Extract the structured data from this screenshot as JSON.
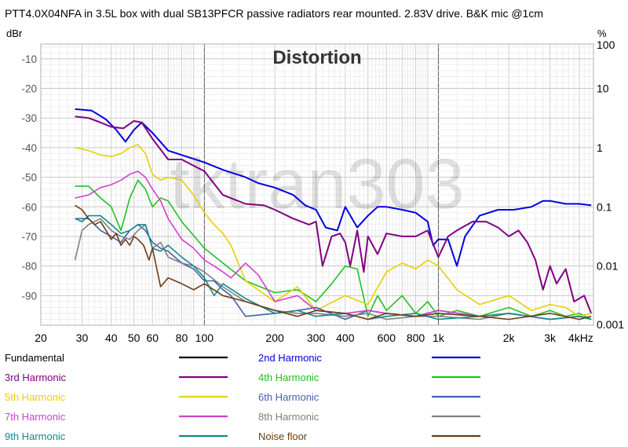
{
  "chart_data": {
    "type": "line",
    "title": "PTT4.0X04NFA in 3.5L box with dual SB13PFCR passive radiators rear mounted. 2.83V drive. B&K mic @1cm",
    "inner_title": "Distortion",
    "watermark": "tktran303",
    "x_scale": "log",
    "x_range": [
      20,
      4600
    ],
    "x_tick_values": [
      20,
      30,
      40,
      50,
      60,
      80,
      100,
      200,
      300,
      400,
      600,
      800,
      1000,
      2000,
      3000,
      4000
    ],
    "x_tick_labels": [
      "20",
      "30",
      "40",
      "50",
      "60",
      "80",
      "100",
      "200",
      "300",
      "400",
      "600",
      "800",
      "1k",
      "2k",
      "3k",
      "4kHz"
    ],
    "y_left_label": "dBr",
    "y_left_range": [
      -100,
      -5
    ],
    "y_left_ticks": [
      -10,
      -20,
      -30,
      -40,
      -50,
      -60,
      -70,
      -80,
      -90
    ],
    "y_left_tick_labels": [
      "-10",
      "-20",
      "-30",
      "-40",
      "-50",
      "-60",
      "-70",
      "-80",
      "-90"
    ],
    "y_right_label": "%",
    "y_right_ticks": [
      100,
      10,
      1,
      0.1,
      0.01,
      0.001
    ],
    "y_right_tick_labels": [
      "100",
      "10",
      "1",
      "0.1",
      "0.01",
      "0.001"
    ],
    "grid": true,
    "series": [
      {
        "name": "Fundamental",
        "color": "#000000",
        "x": [],
        "y": []
      },
      {
        "name": "2nd Harmonic",
        "color": "#0000e0",
        "x": [
          28,
          33,
          38,
          42,
          46,
          50,
          54,
          60,
          70,
          80,
          100,
          120,
          150,
          170,
          200,
          240,
          270,
          300,
          330,
          370,
          400,
          450,
          500,
          550,
          600,
          700,
          800,
          900,
          950,
          1000,
          1100,
          1200,
          1300,
          1500,
          1800,
          2100,
          2500,
          2800,
          3000,
          3500,
          4000,
          4500
        ],
        "y": [
          -27,
          -27.5,
          -30.5,
          -34,
          -38,
          -34,
          -31.5,
          -35,
          -41,
          -42.5,
          -45,
          -47.5,
          -50,
          -52,
          -53.5,
          -56,
          -59.5,
          -61,
          -67,
          -68,
          -60,
          -67,
          -63,
          -60,
          -60,
          -61,
          -62,
          -65,
          -73,
          -71,
          -71,
          -80,
          -70,
          -63,
          -61,
          -61,
          -60,
          -58,
          -58,
          -59,
          -59,
          -59.5
        ]
      },
      {
        "name": "3rd Harmonic",
        "color": "#800080",
        "x": [
          28,
          32,
          36,
          40,
          45,
          50,
          54,
          60,
          70,
          80,
          100,
          120,
          150,
          180,
          200,
          240,
          280,
          300,
          320,
          350,
          380,
          400,
          420,
          450,
          480,
          500,
          550,
          600,
          700,
          800,
          900,
          1000,
          1100,
          1200,
          1400,
          1600,
          1800,
          2000,
          2200,
          2400,
          2600,
          2800,
          3000,
          3200,
          3500,
          3800,
          4200,
          4500
        ],
        "y": [
          -29.5,
          -30,
          -31.5,
          -33,
          -33.5,
          -31,
          -31.5,
          -37,
          -44,
          -44,
          -48,
          -56,
          -59,
          -59.5,
          -61,
          -64,
          -66,
          -65,
          -80,
          -70,
          -69,
          -72,
          -80,
          -68,
          -82,
          -70,
          -76,
          -69,
          -70,
          -70,
          -68,
          -77,
          -70,
          -68,
          -65,
          -65,
          -67,
          -70,
          -68,
          -72,
          -78,
          -88,
          -80,
          -86,
          -81,
          -92,
          -90,
          -96
        ]
      },
      {
        "name": "4th Harmonic",
        "color": "#22c022",
        "x": [
          28,
          32,
          36,
          40,
          44,
          48,
          52,
          56,
          60,
          65,
          70,
          80,
          100,
          120,
          150,
          200,
          250,
          300,
          350,
          400,
          450,
          500,
          550,
          600,
          700,
          800,
          900,
          1000,
          1200,
          1500,
          2000,
          2500,
          3000,
          3500,
          4000,
          4500
        ],
        "y": [
          -53,
          -53,
          -57,
          -60,
          -68,
          -57,
          -51,
          -54,
          -60,
          -57,
          -58,
          -65,
          -74,
          -79,
          -85,
          -89,
          -88,
          -92,
          -86,
          -80,
          -81,
          -97,
          -90,
          -95,
          -90,
          -96,
          -92,
          -97,
          -95,
          -97,
          -94,
          -97,
          -95,
          -97,
          -96,
          -98
        ]
      },
      {
        "name": "5th Harmonic",
        "color": "#e8d000",
        "x": [
          28,
          32,
          36,
          40,
          44,
          48,
          52,
          56,
          60,
          65,
          70,
          80,
          90,
          100,
          110,
          120,
          130,
          150,
          200,
          250,
          300,
          400,
          500,
          600,
          700,
          800,
          900,
          1000,
          1200,
          1500,
          2000,
          2500,
          3000,
          3500,
          4000,
          4500
        ],
        "y": [
          -40,
          -41,
          -42.5,
          -43,
          -42,
          -40,
          -39,
          -42,
          -49,
          -51,
          -50,
          -51,
          -56,
          -62,
          -66,
          -69,
          -73,
          -85,
          -92,
          -87,
          -95,
          -90,
          -93,
          -82,
          -79,
          -81,
          -78,
          -80,
          -88,
          -93,
          -90,
          -95,
          -93,
          -94,
          -97,
          -96
        ]
      },
      {
        "name": "6th Harmonic",
        "color": "#4060b0",
        "x": [
          28,
          32,
          36,
          40,
          44,
          48,
          52,
          56,
          60,
          65,
          70,
          80,
          90,
          100,
          110,
          120,
          130,
          150,
          200,
          250,
          300,
          400,
          500,
          600,
          800,
          1000,
          1500,
          2000,
          3000,
          4000,
          4500
        ],
        "y": [
          -64,
          -64,
          -68,
          -70,
          -72,
          -68,
          -66,
          -68,
          -72,
          -74,
          -75,
          -79,
          -81,
          -85,
          -85,
          -88,
          -90,
          -97,
          -96,
          -95,
          -94,
          -98,
          -95,
          -96,
          -97,
          -95,
          -97,
          -96,
          -98,
          -97,
          -98
        ]
      },
      {
        "name": "7th Harmonic",
        "color": "#d040d0",
        "x": [
          28,
          32,
          36,
          40,
          44,
          48,
          52,
          56,
          60,
          65,
          70,
          80,
          90,
          100,
          110,
          120,
          130,
          150,
          170,
          200,
          250,
          300,
          400,
          500,
          600,
          800,
          1000,
          1500,
          2000,
          3000,
          4000,
          4500
        ],
        "y": [
          -57,
          -56,
          -53.5,
          -52.5,
          -51,
          -49,
          -48,
          -50,
          -54,
          -58,
          -64,
          -71,
          -74,
          -78,
          -80,
          -82,
          -84,
          -79,
          -83,
          -92,
          -90,
          -95,
          -96,
          -95,
          -96,
          -97,
          -95,
          -97,
          -96,
          -98,
          -97,
          -98
        ]
      },
      {
        "name": "8th Harmonic",
        "color": "#808080",
        "x": [
          28,
          30,
          32,
          36,
          40,
          44,
          48,
          52,
          56,
          60,
          65,
          70,
          80,
          90,
          100,
          120,
          150,
          200,
          250,
          300,
          400,
          500,
          600,
          800,
          1000,
          1500,
          2000,
          3000,
          4000,
          4500
        ],
        "y": [
          -78,
          -68,
          -66,
          -64,
          -68,
          -70,
          -71,
          -68,
          -66,
          -74,
          -72,
          -77,
          -79,
          -80,
          -82,
          -87,
          -92,
          -95,
          -96,
          -96,
          -97,
          -96,
          -98,
          -97,
          -97,
          -98,
          -96,
          -98,
          -97,
          -98
        ]
      },
      {
        "name": "9th Harmonic",
        "color": "#108a8a",
        "x": [
          28,
          30,
          32,
          36,
          40,
          44,
          48,
          52,
          56,
          60,
          65,
          70,
          80,
          90,
          100,
          110,
          120,
          150,
          200,
          250,
          300,
          400,
          500,
          600,
          800,
          1000,
          1500,
          2000,
          3000,
          4000,
          4500
        ],
        "y": [
          -64,
          -65,
          -63,
          -63,
          -66,
          -69,
          -68,
          -66,
          -66,
          -74,
          -75,
          -73,
          -77,
          -80,
          -84,
          -90,
          -86,
          -91,
          -96,
          -95,
          -97,
          -96,
          -98,
          -97,
          -96,
          -98,
          -97,
          -96,
          -98,
          -97,
          -98
        ]
      },
      {
        "name": "Noise floor",
        "color": "#6b3c14",
        "x": [
          28,
          30,
          32,
          34,
          36,
          38,
          40,
          42,
          44,
          46,
          48,
          50,
          52,
          55,
          58,
          60,
          65,
          70,
          75,
          80,
          90,
          100,
          120,
          150,
          200,
          250,
          300,
          400,
          500,
          600,
          800,
          1000,
          1500,
          2000,
          3000,
          4000,
          4500
        ],
        "y": [
          -59.5,
          -61,
          -64,
          -66,
          -65,
          -68,
          -71,
          -69,
          -73,
          -71,
          -73,
          -70,
          -71,
          -73,
          -78,
          -74,
          -87,
          -84,
          -85,
          -86,
          -88,
          -86,
          -90,
          -92,
          -95,
          -97,
          -95,
          -96,
          -98,
          -96,
          -97,
          -96,
          -97,
          -98,
          -96,
          -98,
          -97
        ]
      }
    ]
  }
}
